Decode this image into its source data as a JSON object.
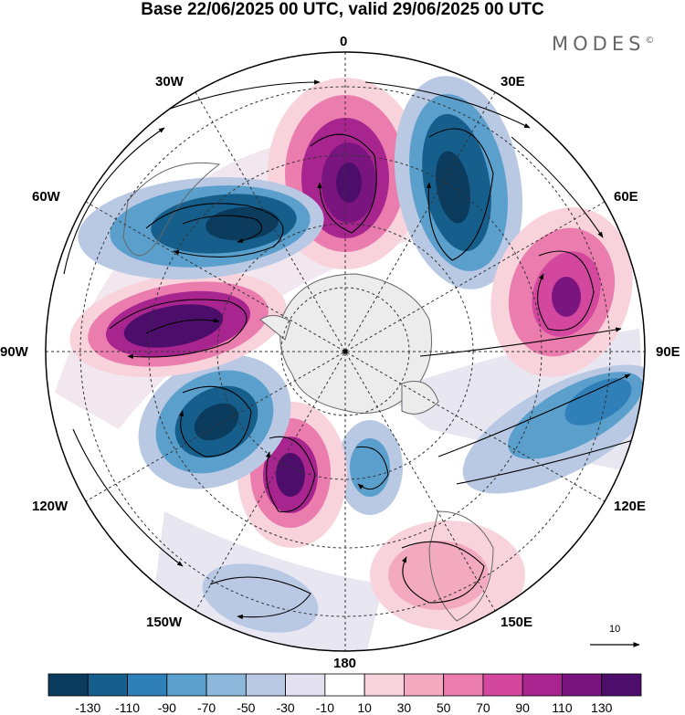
{
  "title": "Base 22/06/2025 00 UTC, valid 29/06/2025 00 UTC",
  "brand": {
    "text": "MODES",
    "mark": "©"
  },
  "longitude_labels": [
    "0",
    "30E",
    "60E",
    "90E",
    "120E",
    "150E",
    "180",
    "150W",
    "120W",
    "90W",
    "60W",
    "30W"
  ],
  "colorbar": {
    "labels": [
      "-130",
      "-110",
      "-90",
      "-70",
      "-50",
      "-30",
      "-10",
      "10",
      "30",
      "50",
      "70",
      "90",
      "110",
      "130"
    ],
    "colors": [
      "#0b3c5d",
      "#165f8c",
      "#2f7fb8",
      "#5b9fcc",
      "#8db8dc",
      "#b9c9e4",
      "#e3e1f0",
      "#ffffff",
      "#f9d3db",
      "#f3aac0",
      "#ea7cae",
      "#d3489e",
      "#a8248f",
      "#7a157f",
      "#4d0d6a"
    ]
  },
  "reference_vector": {
    "label": "10"
  },
  "map": {
    "projection": "south polar stereographic",
    "colors": {
      "land": "#ececec",
      "coast": "#666666",
      "streamline": "#000000",
      "grid": "#333333"
    },
    "anomaly_centers": [
      {
        "lon_label": "0 (north-center)",
        "value": 120
      },
      {
        "lon_label": "30E",
        "value": -110
      },
      {
        "lon_label": "60E",
        "value": 110
      },
      {
        "lon_label": "90E-120E",
        "value": -80
      },
      {
        "lon_label": "150E",
        "value": 50
      },
      {
        "lon_label": "180",
        "value": -60
      },
      {
        "lon_label": "150W",
        "value": 130
      },
      {
        "lon_label": "120W",
        "value": -130
      },
      {
        "lon_label": "90W",
        "value": 130
      },
      {
        "lon_label": "60W",
        "value": -120
      },
      {
        "lon_label": "150W outer",
        "value": -40
      }
    ]
  }
}
